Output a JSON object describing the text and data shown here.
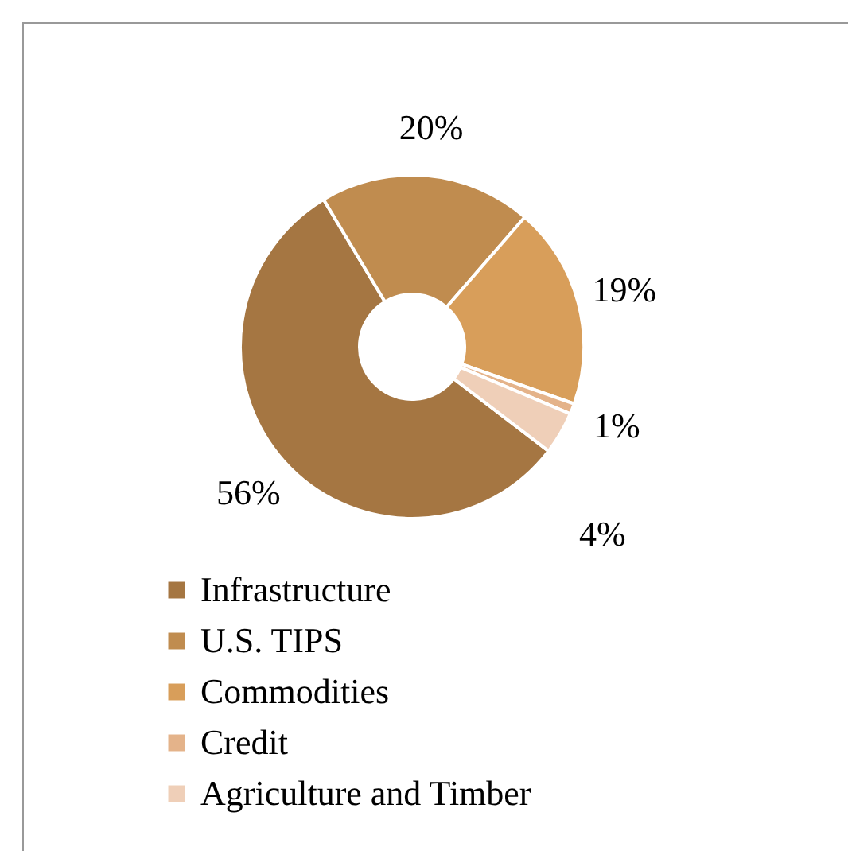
{
  "chart_data": {
    "type": "donut",
    "categories": [
      "Infrastructure",
      "U.S. TIPS",
      "Commodities",
      "Credit",
      "Agriculture and Timber"
    ],
    "values": [
      56,
      20,
      19,
      1,
      4
    ],
    "colors": [
      "#a57642",
      "#c08c4f",
      "#d89e5a",
      "#e4b38a",
      "#efcfb8"
    ],
    "value_labels": [
      "56%",
      "20%",
      "19%",
      "1%",
      "4%"
    ],
    "legend": "bottom"
  }
}
